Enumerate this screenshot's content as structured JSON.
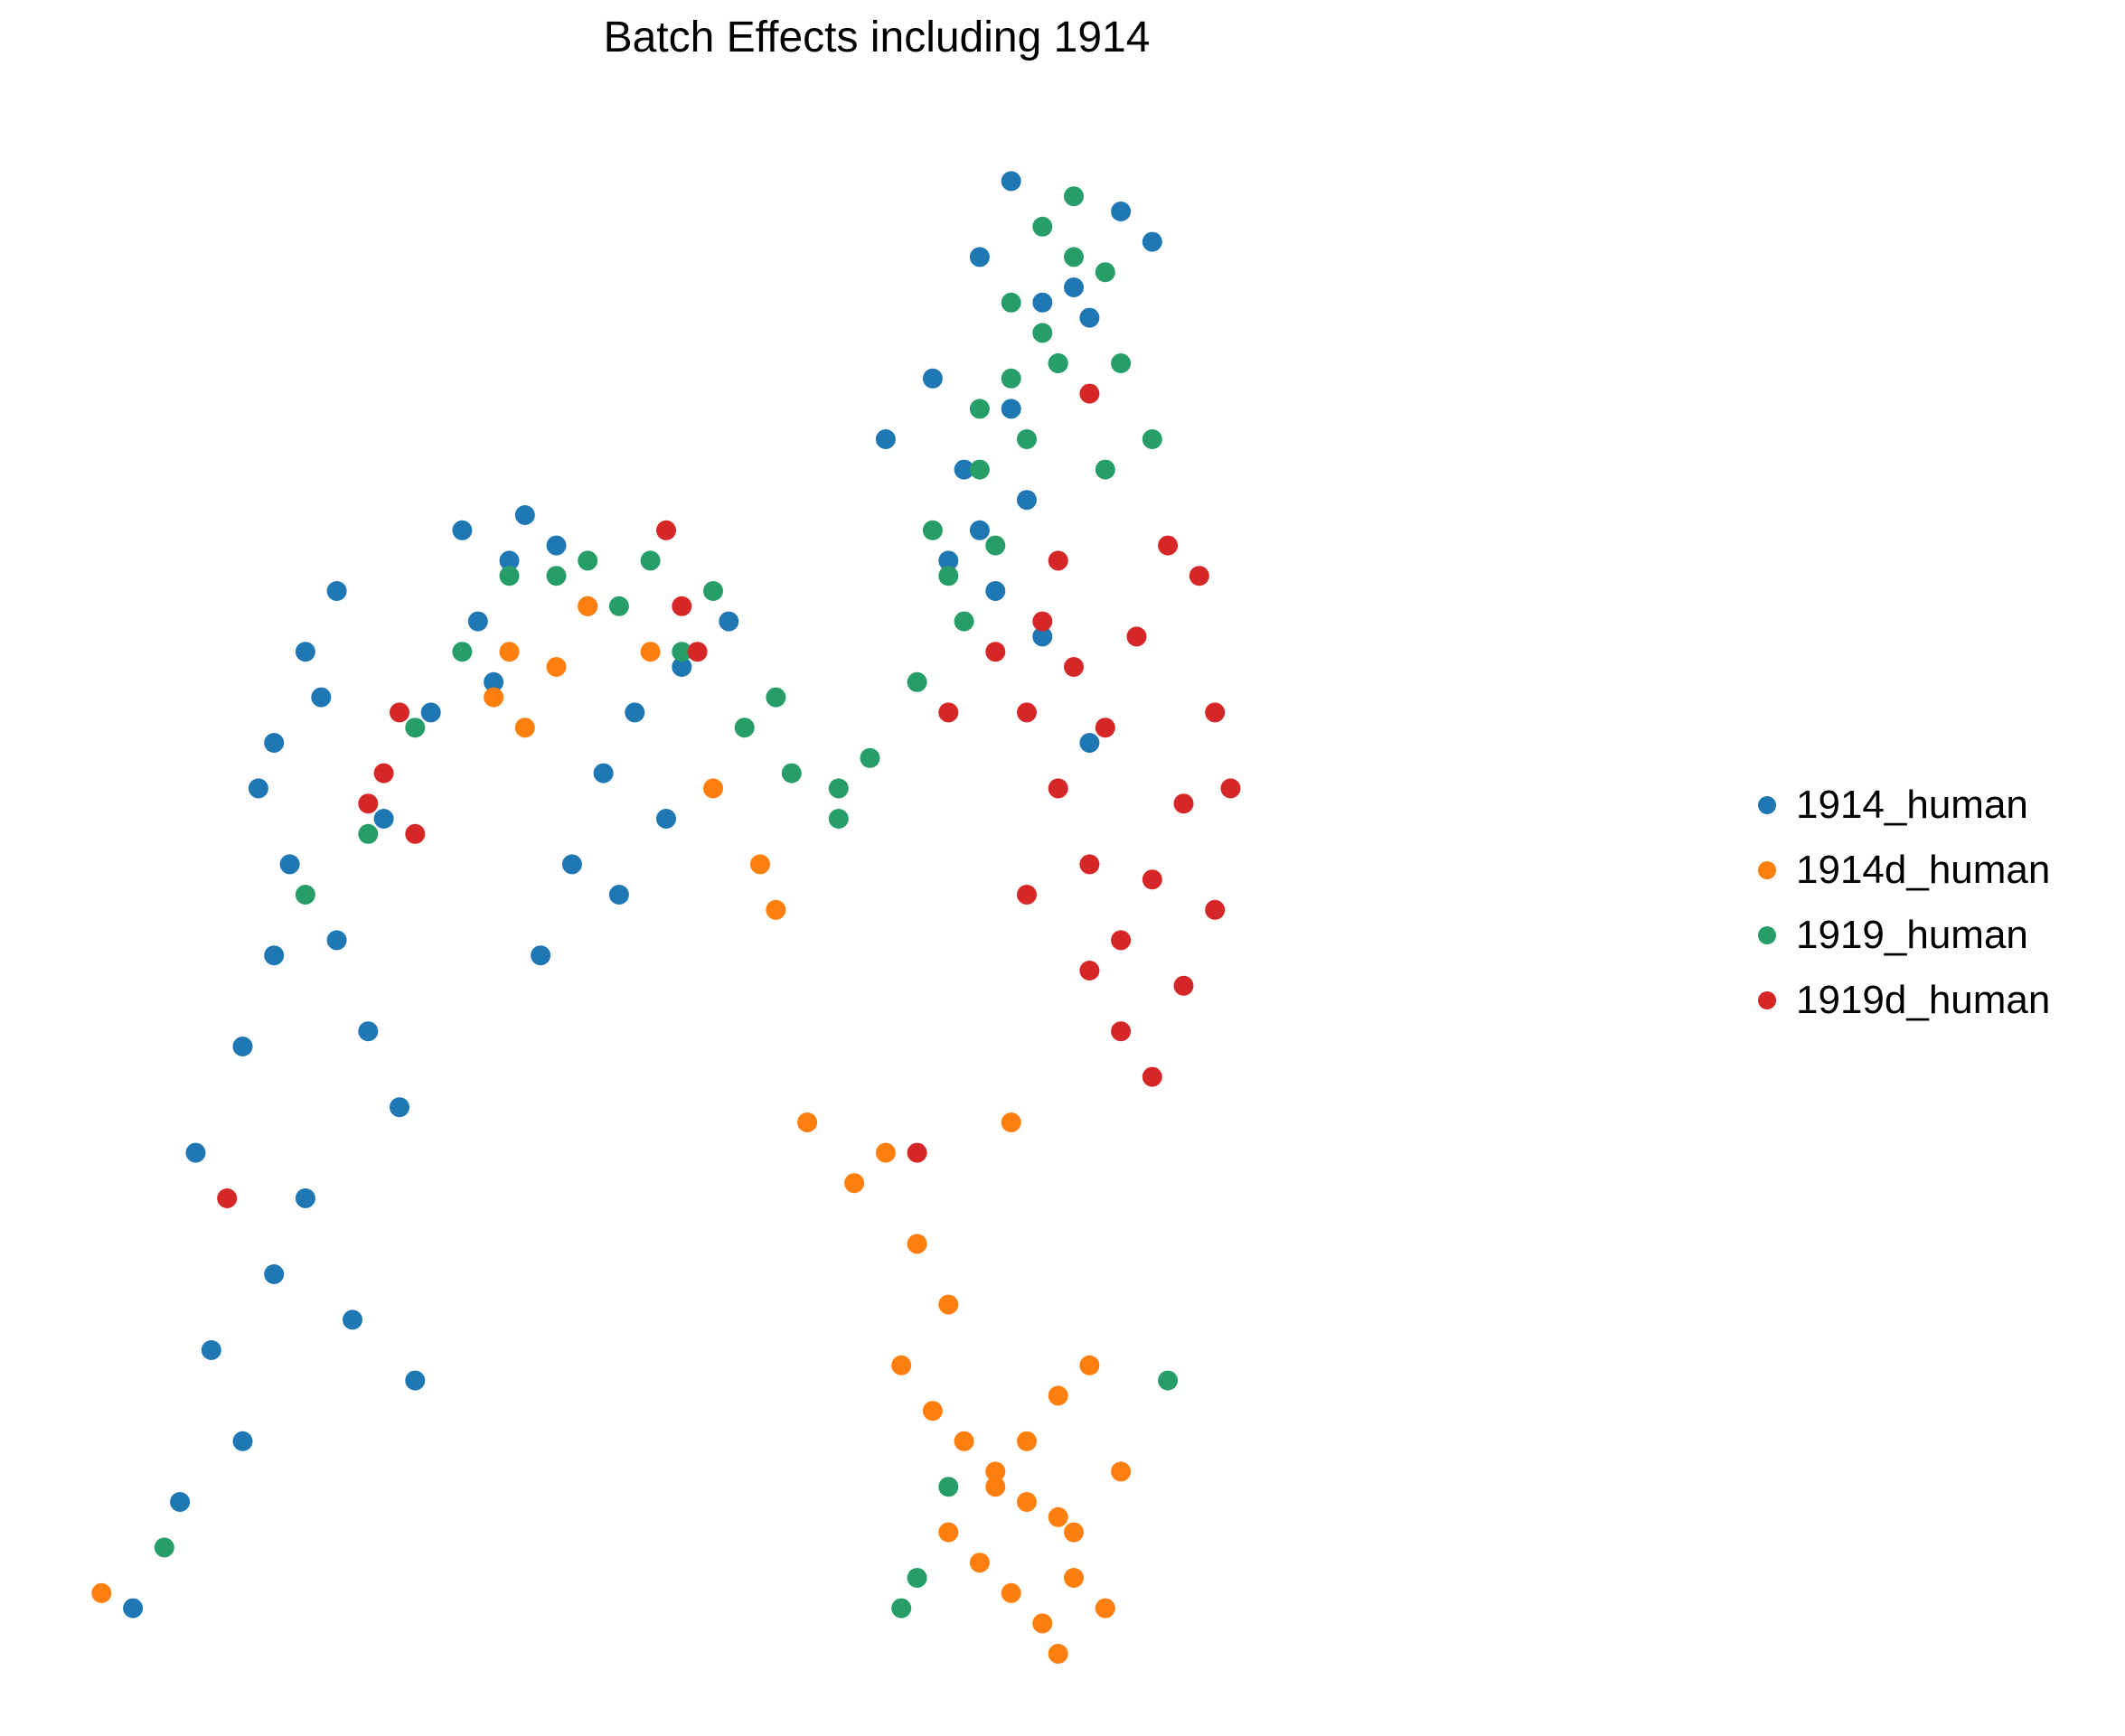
{
  "chart_data": {
    "type": "scatter",
    "title": "Batch Effects including 1914",
    "xlabel": "",
    "ylabel": "",
    "grid": false,
    "axes_visible": false,
    "legend_position": "right",
    "series": [
      {
        "name": "1914_human",
        "color": "#1f77b4",
        "x": [
          0.03,
          0.06,
          0.1,
          0.08,
          0.12,
          0.07,
          0.1,
          0.12,
          0.13,
          0.11,
          0.15,
          0.16,
          0.18,
          0.2,
          0.14,
          0.17,
          0.21,
          0.19,
          0.12,
          0.14,
          0.16,
          0.22,
          0.25,
          0.27,
          0.24,
          0.28,
          0.3,
          0.32,
          0.26,
          0.33,
          0.31,
          0.29,
          0.34,
          0.37,
          0.35,
          0.38,
          0.41,
          0.57,
          0.59,
          0.51,
          0.54,
          0.61,
          0.64,
          0.68,
          0.66,
          0.63,
          0.62,
          0.59,
          0.6,
          0.58,
          0.61,
          0.64,
          0.57,
          0.56,
          0.55
        ],
        "y": [
          0.03,
          0.1,
          0.14,
          0.2,
          0.25,
          0.33,
          0.4,
          0.46,
          0.52,
          0.57,
          0.63,
          0.47,
          0.41,
          0.36,
          0.3,
          0.22,
          0.18,
          0.55,
          0.6,
          0.66,
          0.7,
          0.62,
          0.68,
          0.72,
          0.74,
          0.75,
          0.73,
          0.69,
          0.64,
          0.58,
          0.52,
          0.46,
          0.5,
          0.55,
          0.62,
          0.65,
          0.68,
          0.92,
          0.97,
          0.8,
          0.84,
          0.89,
          0.88,
          0.93,
          0.95,
          0.9,
          0.85,
          0.82,
          0.76,
          0.7,
          0.67,
          0.6,
          0.74,
          0.78,
          0.72
        ]
      },
      {
        "name": "1914d_human",
        "color": "#ff7f0e",
        "x": [
          0.01,
          0.26,
          0.27,
          0.3,
          0.28,
          0.32,
          0.36,
          0.4,
          0.43,
          0.44,
          0.46,
          0.49,
          0.51,
          0.53,
          0.55,
          0.52,
          0.54,
          0.56,
          0.58,
          0.6,
          0.62,
          0.57,
          0.59,
          0.61,
          0.63,
          0.55,
          0.58,
          0.6,
          0.62,
          0.64,
          0.66,
          0.63,
          0.65,
          0.62,
          0.59
        ],
        "y": [
          0.04,
          0.63,
          0.66,
          0.65,
          0.61,
          0.69,
          0.66,
          0.57,
          0.52,
          0.49,
          0.35,
          0.31,
          0.33,
          0.27,
          0.23,
          0.19,
          0.16,
          0.14,
          0.12,
          0.1,
          0.09,
          0.06,
          0.04,
          0.02,
          0.05,
          0.08,
          0.11,
          0.14,
          0.17,
          0.19,
          0.12,
          0.08,
          0.03,
          0.0,
          0.35
        ]
      },
      {
        "name": "1919_human",
        "color": "#279e68",
        "x": [
          0.05,
          0.14,
          0.18,
          0.21,
          0.24,
          0.27,
          0.3,
          0.34,
          0.38,
          0.42,
          0.45,
          0.48,
          0.5,
          0.53,
          0.55,
          0.57,
          0.59,
          0.61,
          0.63,
          0.65,
          0.56,
          0.58,
          0.6,
          0.62,
          0.54,
          0.57,
          0.59,
          0.61,
          0.63,
          0.66,
          0.65,
          0.68,
          0.69,
          0.55,
          0.53,
          0.52,
          0.48,
          0.44,
          0.4,
          0.36,
          0.32
        ],
        "y": [
          0.07,
          0.5,
          0.54,
          0.61,
          0.66,
          0.71,
          0.71,
          0.69,
          0.66,
          0.61,
          0.58,
          0.55,
          0.59,
          0.64,
          0.71,
          0.78,
          0.84,
          0.87,
          0.92,
          0.91,
          0.68,
          0.73,
          0.8,
          0.85,
          0.74,
          0.82,
          0.89,
          0.94,
          0.96,
          0.85,
          0.78,
          0.8,
          0.18,
          0.11,
          0.05,
          0.03,
          0.57,
          0.63,
          0.7,
          0.72,
          0.72
        ]
      },
      {
        "name": "1919d_human",
        "color": "#d62728",
        "x": [
          0.09,
          0.19,
          0.2,
          0.21,
          0.18,
          0.37,
          0.38,
          0.39,
          0.6,
          0.62,
          0.64,
          0.66,
          0.68,
          0.7,
          0.72,
          0.71,
          0.69,
          0.67,
          0.65,
          0.63,
          0.61,
          0.66,
          0.68,
          0.7,
          0.72,
          0.73,
          0.64,
          0.6,
          0.58,
          0.62,
          0.55,
          0.64,
          0.53
        ],
        "y": [
          0.3,
          0.58,
          0.62,
          0.54,
          0.56,
          0.74,
          0.69,
          0.66,
          0.62,
          0.57,
          0.52,
          0.47,
          0.51,
          0.56,
          0.62,
          0.71,
          0.73,
          0.67,
          0.61,
          0.65,
          0.68,
          0.41,
          0.38,
          0.44,
          0.49,
          0.57,
          0.45,
          0.5,
          0.66,
          0.72,
          0.62,
          0.83,
          0.33
        ]
      }
    ]
  }
}
